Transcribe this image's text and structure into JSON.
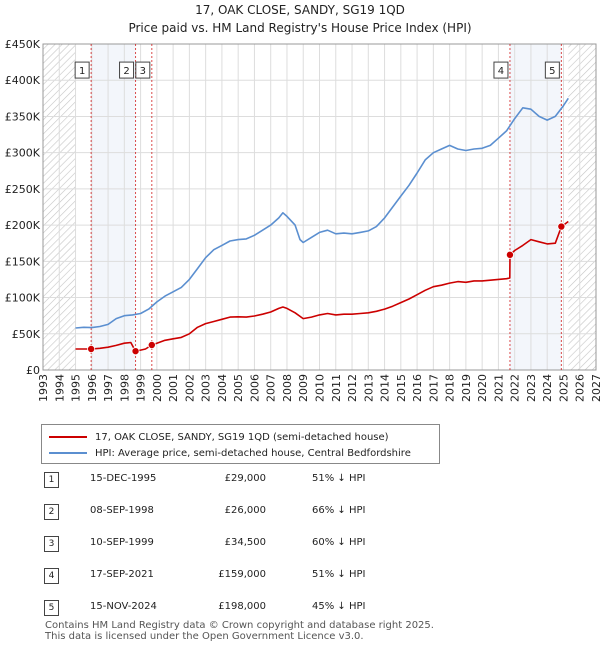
{
  "title_line1": "17, OAK CLOSE, SANDY, SG19 1QD",
  "title_line2": "Price paid vs. HM Land Registry's House Price Index (HPI)",
  "colors": {
    "property": "#cc0000",
    "hpi": "#5b8fd0",
    "grid": "#dddddd",
    "marker_line": "#cc0000",
    "hatch": "#c8c8c8",
    "shade": "#dde6f3"
  },
  "chart_data": {
    "type": "line",
    "title": "Price paid vs. HM Land Registry's House Price Index (HPI)",
    "xlabel": "",
    "ylabel": "",
    "xlim": [
      1993,
      2027
    ],
    "ylim": [
      0,
      450000
    ],
    "yticks": [
      0,
      50000,
      100000,
      150000,
      200000,
      250000,
      300000,
      350000,
      400000,
      450000
    ],
    "ytick_labels": [
      "£0",
      "£50K",
      "£100K",
      "£150K",
      "£200K",
      "£250K",
      "£300K",
      "£350K",
      "£400K",
      "£450K"
    ],
    "xticks": [
      "1993",
      "1994",
      "1995",
      "1996",
      "1997",
      "1998",
      "1999",
      "2000",
      "2001",
      "2002",
      "2003",
      "2004",
      "2005",
      "2006",
      "2007",
      "2008",
      "2009",
      "2010",
      "2011",
      "2012",
      "2013",
      "2014",
      "2015",
      "2016",
      "2017",
      "2018",
      "2019",
      "2020",
      "2021",
      "2022",
      "2023",
      "2024",
      "2025",
      "2026",
      "2027"
    ],
    "data_start": 1995.0,
    "data_end": 2025.3,
    "series": [
      {
        "name": "17, OAK CLOSE, SANDY, SG19 1QD (semi-detached house)",
        "points": [
          [
            1995.0,
            29000
          ],
          [
            1995.5,
            29000
          ],
          [
            1995.96,
            29000
          ],
          [
            1996.5,
            30000
          ],
          [
            1997.0,
            31500
          ],
          [
            1997.5,
            34000
          ],
          [
            1998.0,
            37000
          ],
          [
            1998.4,
            38000
          ],
          [
            1998.69,
            26000
          ],
          [
            1999.0,
            27500
          ],
          [
            1999.3,
            29000
          ],
          [
            1999.69,
            34500
          ],
          [
            2000.0,
            37000
          ],
          [
            2000.5,
            41000
          ],
          [
            2001.0,
            43000
          ],
          [
            2001.5,
            45000
          ],
          [
            2002.0,
            50000
          ],
          [
            2002.5,
            59000
          ],
          [
            2003.0,
            64000
          ],
          [
            2003.5,
            67000
          ],
          [
            2004.0,
            70000
          ],
          [
            2004.5,
            73000
          ],
          [
            2005.0,
            73500
          ],
          [
            2005.5,
            73000
          ],
          [
            2006.0,
            74500
          ],
          [
            2006.5,
            77000
          ],
          [
            2007.0,
            80000
          ],
          [
            2007.5,
            85000
          ],
          [
            2007.75,
            87000
          ],
          [
            2008.0,
            85000
          ],
          [
            2008.5,
            79000
          ],
          [
            2009.0,
            71000
          ],
          [
            2009.5,
            73000
          ],
          [
            2010.0,
            76000
          ],
          [
            2010.5,
            78000
          ],
          [
            2011.0,
            76000
          ],
          [
            2011.5,
            77000
          ],
          [
            2012.0,
            77000
          ],
          [
            2012.5,
            78000
          ],
          [
            2013.0,
            79000
          ],
          [
            2013.5,
            81000
          ],
          [
            2014.0,
            84000
          ],
          [
            2014.5,
            88000
          ],
          [
            2015.0,
            93000
          ],
          [
            2015.5,
            98000
          ],
          [
            2016.0,
            104000
          ],
          [
            2016.5,
            110000
          ],
          [
            2017.0,
            115000
          ],
          [
            2017.5,
            117000
          ],
          [
            2018.0,
            120000
          ],
          [
            2018.5,
            122000
          ],
          [
            2019.0,
            121000
          ],
          [
            2019.5,
            123000
          ],
          [
            2020.0,
            123000
          ],
          [
            2020.5,
            124000
          ],
          [
            2021.0,
            125000
          ],
          [
            2021.5,
            126000
          ],
          [
            2021.7,
            127000
          ],
          [
            2021.71,
            159000
          ],
          [
            2022.0,
            165000
          ],
          [
            2022.5,
            172000
          ],
          [
            2023.0,
            180000
          ],
          [
            2023.5,
            177000
          ],
          [
            2024.0,
            174000
          ],
          [
            2024.5,
            175000
          ],
          [
            2024.87,
            198000
          ],
          [
            2025.0,
            200000
          ],
          [
            2025.3,
            205000
          ]
        ]
      },
      {
        "name": "HPI: Average price, semi-detached house, Central Bedfordshire",
        "points": [
          [
            1995.0,
            58000
          ],
          [
            1995.5,
            59000
          ],
          [
            1996.0,
            58500
          ],
          [
            1996.5,
            60000
          ],
          [
            1997.0,
            63000
          ],
          [
            1997.5,
            71000
          ],
          [
            1998.0,
            75000
          ],
          [
            1998.5,
            76000
          ],
          [
            1999.0,
            78000
          ],
          [
            1999.5,
            84000
          ],
          [
            2000.0,
            94000
          ],
          [
            2000.5,
            102000
          ],
          [
            2001.0,
            108000
          ],
          [
            2001.5,
            114000
          ],
          [
            2002.0,
            125000
          ],
          [
            2002.5,
            140000
          ],
          [
            2003.0,
            155000
          ],
          [
            2003.5,
            166000
          ],
          [
            2004.0,
            172000
          ],
          [
            2004.5,
            178000
          ],
          [
            2005.0,
            180000
          ],
          [
            2005.5,
            181000
          ],
          [
            2006.0,
            186000
          ],
          [
            2006.5,
            193000
          ],
          [
            2007.0,
            200000
          ],
          [
            2007.5,
            210000
          ],
          [
            2007.75,
            217000
          ],
          [
            2008.0,
            212000
          ],
          [
            2008.5,
            200000
          ],
          [
            2008.8,
            180000
          ],
          [
            2009.0,
            176000
          ],
          [
            2009.5,
            183000
          ],
          [
            2010.0,
            190000
          ],
          [
            2010.5,
            193000
          ],
          [
            2011.0,
            188000
          ],
          [
            2011.5,
            189000
          ],
          [
            2012.0,
            188000
          ],
          [
            2012.5,
            190000
          ],
          [
            2013.0,
            192000
          ],
          [
            2013.5,
            198000
          ],
          [
            2014.0,
            210000
          ],
          [
            2014.5,
            225000
          ],
          [
            2015.0,
            240000
          ],
          [
            2015.5,
            255000
          ],
          [
            2016.0,
            272000
          ],
          [
            2016.5,
            290000
          ],
          [
            2017.0,
            300000
          ],
          [
            2017.5,
            305000
          ],
          [
            2018.0,
            310000
          ],
          [
            2018.5,
            305000
          ],
          [
            2019.0,
            303000
          ],
          [
            2019.5,
            305000
          ],
          [
            2020.0,
            306000
          ],
          [
            2020.5,
            310000
          ],
          [
            2021.0,
            320000
          ],
          [
            2021.5,
            330000
          ],
          [
            2022.0,
            347000
          ],
          [
            2022.5,
            362000
          ],
          [
            2023.0,
            360000
          ],
          [
            2023.5,
            350000
          ],
          [
            2024.0,
            345000
          ],
          [
            2024.5,
            350000
          ],
          [
            2025.0,
            365000
          ],
          [
            2025.3,
            375000
          ]
        ]
      }
    ],
    "sales": [
      {
        "num": "1",
        "x": 1995.96,
        "price": 29000,
        "date": "15-DEC-1995",
        "price_label": "£29,000",
        "hpi_label": "51% ↓ HPI"
      },
      {
        "num": "2",
        "x": 1998.69,
        "price": 26000,
        "date": "08-SEP-1998",
        "price_label": "£26,000",
        "hpi_label": "66% ↓ HPI"
      },
      {
        "num": "3",
        "x": 1999.69,
        "price": 34500,
        "date": "10-SEP-1999",
        "price_label": "£34,500",
        "hpi_label": "60% ↓ HPI"
      },
      {
        "num": "4",
        "x": 2021.71,
        "price": 159000,
        "date": "17-SEP-2021",
        "price_label": "£159,000",
        "hpi_label": "51% ↓ HPI"
      },
      {
        "num": "5",
        "x": 2024.87,
        "price": 198000,
        "date": "15-NOV-2024",
        "price_label": "£198,000",
        "hpi_label": "45% ↓ HPI"
      }
    ]
  },
  "legend": {
    "property_label": "17, OAK CLOSE, SANDY, SG19 1QD (semi-detached house)",
    "hpi_label": "HPI: Average price, semi-detached house, Central Bedfordshire"
  },
  "footer": {
    "line1": "Contains HM Land Registry data © Crown copyright and database right 2025.",
    "line2": "This data is licensed under the Open Government Licence v3.0."
  }
}
